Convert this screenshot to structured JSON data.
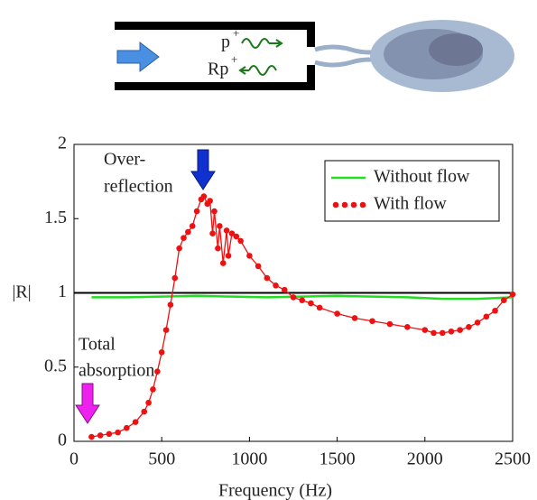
{
  "schematic": {
    "labels": [
      {
        "base": "p",
        "sup": "+"
      },
      {
        "base": "Rp",
        "sup": "+"
      }
    ]
  },
  "chart_data": {
    "type": "line",
    "x_label": "Frequency (Hz)",
    "y_label": "|R|",
    "xlim": [
      0,
      2500
    ],
    "xticks": [
      0,
      500,
      1000,
      1500,
      2000,
      2500
    ],
    "ylim": [
      0,
      2
    ],
    "yticks": [
      0,
      0.5,
      1,
      1.5,
      2
    ],
    "reference_line": 1,
    "legend": "upper right",
    "annotations": [
      {
        "lines": [
          "Over-",
          "reflection"
        ]
      },
      {
        "lines": [
          "Total",
          "absorption"
        ]
      }
    ],
    "series": [
      {
        "name": "Without flow",
        "color": "#22dd22",
        "markers": false,
        "x": [
          100,
          300,
          500,
          700,
          900,
          1100,
          1300,
          1500,
          1700,
          1900,
          2100,
          2300,
          2500
        ],
        "values": [
          0.97,
          0.97,
          0.975,
          0.98,
          0.975,
          0.97,
          0.975,
          0.98,
          0.975,
          0.97,
          0.96,
          0.96,
          0.97
        ]
      },
      {
        "name": "With flow",
        "color": "#ee1111",
        "markers": true,
        "x": [
          100,
          150,
          200,
          250,
          300,
          350,
          400,
          425,
          450,
          475,
          500,
          525,
          550,
          575,
          600,
          625,
          650,
          675,
          700,
          725,
          740,
          760,
          775,
          790,
          800,
          820,
          830,
          850,
          870,
          880,
          900,
          925,
          950,
          1000,
          1050,
          1100,
          1150,
          1200,
          1250,
          1300,
          1350,
          1400,
          1500,
          1600,
          1700,
          1800,
          1900,
          2000,
          2050,
          2100,
          2150,
          2200,
          2250,
          2300,
          2350,
          2400,
          2450,
          2500
        ],
        "values": [
          0.03,
          0.04,
          0.05,
          0.06,
          0.09,
          0.13,
          0.2,
          0.26,
          0.35,
          0.47,
          0.6,
          0.75,
          0.92,
          1.1,
          1.3,
          1.37,
          1.41,
          1.45,
          1.55,
          1.63,
          1.65,
          1.6,
          1.62,
          1.4,
          1.55,
          1.3,
          1.45,
          1.2,
          1.42,
          1.25,
          1.4,
          1.38,
          1.35,
          1.25,
          1.18,
          1.1,
          1.05,
          1.02,
          0.97,
          0.95,
          0.93,
          0.9,
          0.86,
          0.83,
          0.81,
          0.79,
          0.77,
          0.75,
          0.73,
          0.73,
          0.74,
          0.75,
          0.77,
          0.8,
          0.84,
          0.88,
          0.95,
          0.99
        ]
      }
    ]
  }
}
